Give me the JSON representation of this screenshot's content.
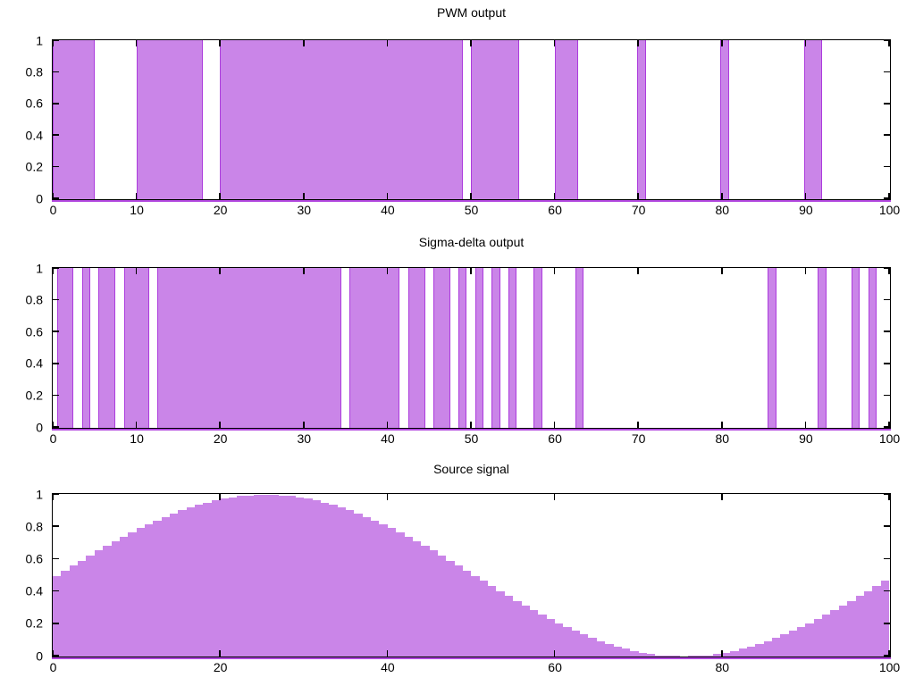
{
  "figure": {
    "background": "#ffffff",
    "fill_color": "#ca85e8",
    "line_color": "#9400d3",
    "axis_color": "#000000"
  },
  "chart_data": [
    {
      "type": "bar",
      "title": "PWM output",
      "xlabel": "",
      "ylabel": "",
      "xlim": [
        0,
        100
      ],
      "ylim": [
        0,
        1
      ],
      "grid": false,
      "legend": "none",
      "x_ticks": [
        0,
        10,
        20,
        30,
        40,
        50,
        60,
        70,
        80,
        90,
        100
      ],
      "y_ticks": [
        0,
        0.2,
        0.4,
        0.6,
        0.8,
        1
      ],
      "pulse_height": 1,
      "pulses": [
        [
          0,
          5
        ],
        [
          10,
          18
        ],
        [
          20,
          49
        ],
        [
          50,
          55.8
        ],
        [
          60,
          62.8
        ],
        [
          69.9,
          70.9
        ],
        [
          79.8,
          80.9
        ],
        [
          89.9,
          92
        ]
      ]
    },
    {
      "type": "bar",
      "title": "Sigma-delta output",
      "xlabel": "",
      "ylabel": "",
      "xlim": [
        0,
        100
      ],
      "ylim": [
        0,
        1
      ],
      "grid": false,
      "legend": "none",
      "x_ticks": [
        0,
        10,
        20,
        30,
        40,
        50,
        60,
        70,
        80,
        90,
        100
      ],
      "y_ticks": [
        0,
        0.2,
        0.4,
        0.6,
        0.8,
        1
      ],
      "pulse_height": 1,
      "pulse_width": 1,
      "pulse_centers": [
        1,
        2,
        4,
        6,
        7,
        9,
        10,
        11,
        13,
        14,
        15,
        16,
        17,
        18,
        19,
        20,
        21,
        22,
        23,
        24,
        25,
        26,
        27,
        28,
        29,
        30,
        31,
        32,
        33,
        34,
        36,
        37,
        38,
        39,
        40,
        41,
        43,
        44,
        46,
        47,
        49,
        51,
        53,
        55,
        58,
        63,
        86,
        92,
        96,
        98
      ]
    },
    {
      "type": "bar",
      "title": "Source signal",
      "xlabel": "",
      "ylabel": "",
      "xlim": [
        0,
        100
      ],
      "ylim": [
        0,
        1
      ],
      "grid": false,
      "legend": "none",
      "x_ticks": [
        0,
        20,
        40,
        60,
        80,
        100
      ],
      "y_ticks": [
        0,
        0.2,
        0.4,
        0.6,
        0.8,
        1
      ],
      "x_start": 0,
      "x_step": 1,
      "values": [
        0.5,
        0.531,
        0.563,
        0.594,
        0.624,
        0.655,
        0.684,
        0.713,
        0.74,
        0.767,
        0.794,
        0.818,
        0.842,
        0.864,
        0.885,
        0.905,
        0.922,
        0.938,
        0.952,
        0.965,
        0.976,
        0.985,
        0.992,
        0.997,
        0.999,
        1,
        0.999,
        0.997,
        0.992,
        0.985,
        0.976,
        0.965,
        0.952,
        0.938,
        0.922,
        0.905,
        0.885,
        0.864,
        0.842,
        0.818,
        0.794,
        0.767,
        0.74,
        0.713,
        0.684,
        0.655,
        0.624,
        0.594,
        0.563,
        0.531,
        0.5,
        0.469,
        0.437,
        0.406,
        0.376,
        0.345,
        0.316,
        0.287,
        0.26,
        0.233,
        0.206,
        0.182,
        0.158,
        0.136,
        0.115,
        0.095,
        0.078,
        0.062,
        0.048,
        0.035,
        0.024,
        0.015,
        0.008,
        0.003,
        0.001,
        0,
        0.001,
        0.003,
        0.008,
        0.015,
        0.024,
        0.035,
        0.048,
        0.062,
        0.078,
        0.095,
        0.115,
        0.136,
        0.158,
        0.182,
        0.206,
        0.233,
        0.26,
        0.287,
        0.316,
        0.345,
        0.376,
        0.406,
        0.437,
        0.469
      ]
    }
  ]
}
